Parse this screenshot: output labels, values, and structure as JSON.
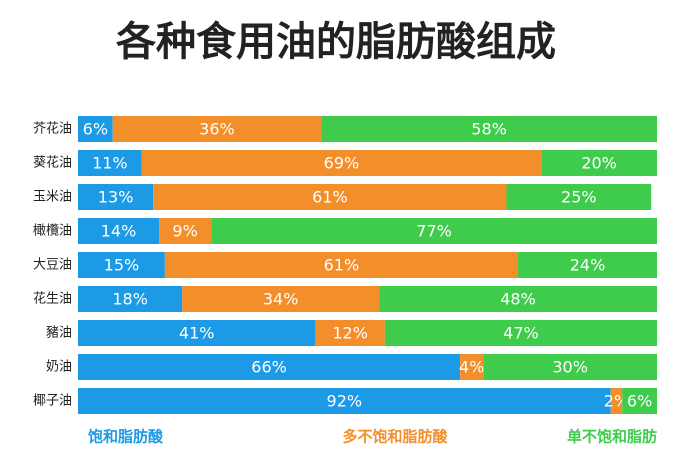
{
  "chart_data": {
    "type": "stacked_bar_horizontal",
    "title": "各种食用油的脂肪酸组成",
    "categories": [
      "芥花油",
      "葵花油",
      "玉米油",
      "橄欖油",
      "大豆油",
      "花生油",
      "豬油",
      "奶油",
      "椰子油"
    ],
    "xlim": [
      0,
      100
    ],
    "series": [
      {
        "name": "饱和脂肪酸",
        "color": "#1c9ae6",
        "values": [
          6,
          11,
          13,
          14,
          15,
          18,
          41,
          66,
          92
        ],
        "value_labels": [
          "6%",
          "11%",
          "13%",
          "14%",
          "15%",
          "18%",
          "41%",
          "66%",
          "92%"
        ]
      },
      {
        "name": "多不饱和脂肪酸",
        "color": "#f38f2b",
        "values": [
          36,
          69,
          61,
          9,
          61,
          34,
          12,
          4,
          2
        ],
        "value_labels": [
          "36%",
          "69%",
          "61%",
          "9%",
          "61%",
          "34%",
          "12%",
          "4%",
          "2%"
        ]
      },
      {
        "name": "单不饱和脂肪",
        "color": "#3fcb4b",
        "values": [
          58,
          20,
          25,
          77,
          24,
          48,
          47,
          30,
          6
        ],
        "value_labels": [
          "58%",
          "20%",
          "25%",
          "77%",
          "24%",
          "48%",
          "47%",
          "30%",
          "6%"
        ]
      }
    ]
  }
}
